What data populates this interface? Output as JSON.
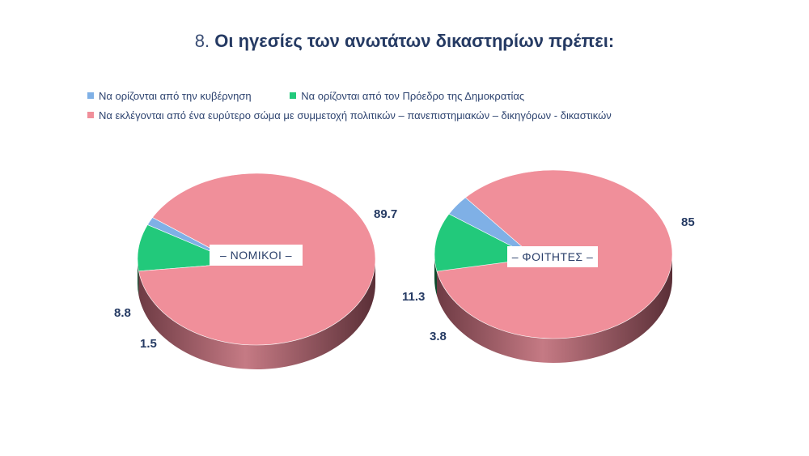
{
  "title": {
    "number": "8.",
    "text": "Οι ηγεσίες των ανωτάτων δικαστηρίων πρέπει:"
  },
  "legend": [
    {
      "label": "Να ορίζονται από την κυβέρνηση",
      "color": "#7fb0e6"
    },
    {
      "label": "Να ορίζονται από τον Πρόεδρο της Δημοκρατίας",
      "color": "#22c97b"
    },
    {
      "label": "Να εκλέγονται από ένα ευρύτερο σώμα με συμμετοχή  πολιτικών – πανεπιστημιακών – δικηγόρων - δικαστικών",
      "color": "#f08f9a"
    }
  ],
  "chart_data": [
    {
      "type": "pie",
      "title": "– ΝΟΜΙΚΟΙ –",
      "categories": [
        "Να ορίζονται από την κυβέρνηση",
        "Να ορίζονται από τον Πρόεδρο της Δημοκρατίας",
        "Να εκλέγονται από ένα ευρύτερο σώμα με συμμετοχή πολιτικών – πανεπιστημιακών – δικηγόρων - δικαστικών"
      ],
      "values": [
        1.5,
        8.8,
        89.7
      ],
      "labels": [
        "1.5",
        "8.8",
        "89.7"
      ],
      "colors": [
        "#7fb0e6",
        "#22c97b",
        "#f08f9a"
      ],
      "style": "3d"
    },
    {
      "type": "pie",
      "title": "– ΦΟΙΤΗΤΕΣ –",
      "categories": [
        "Να ορίζονται από την κυβέρνηση",
        "Να ορίζονται από τον Πρόεδρο της Δημοκρατίας",
        "Να εκλέγονται από ένα ευρύτερο σώμα με συμμετοχή πολιτικών – πανεπιστημιακών – δικηγόρων - δικαστικών"
      ],
      "values": [
        3.8,
        11.3,
        85
      ],
      "labels": [
        "3.8",
        "11.3",
        "85"
      ],
      "colors": [
        "#7fb0e6",
        "#22c97b",
        "#f08f9a"
      ],
      "style": "3d"
    }
  ],
  "pies": {
    "lawyers": {
      "tag": "– ΝΟΜΙΚΟΙ –",
      "label_blue": "1.5",
      "label_green": "8.8",
      "label_pink": "89.7"
    },
    "students": {
      "tag": "– ΦΟΙΤΗΤΕΣ –",
      "label_blue": "3.8",
      "label_green": "11.3",
      "label_pink": "85"
    }
  }
}
